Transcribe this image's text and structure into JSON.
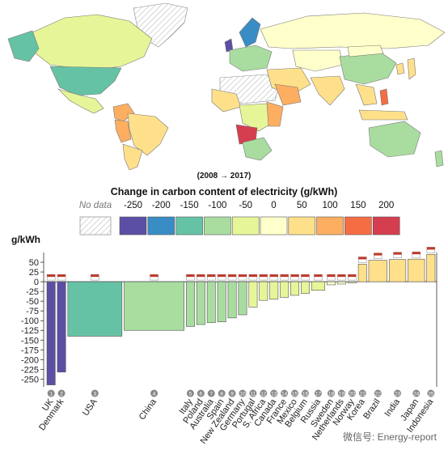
{
  "period_label": "(2008 → 2017)",
  "legend": {
    "title": "Change in carbon content of electricity (g/kWh)",
    "no_data_label": "No data",
    "bins": [
      {
        "label": "-250",
        "color": "#5b4fa5"
      },
      {
        "label": "-200",
        "color": "#3a8dc4"
      },
      {
        "label": "-150",
        "color": "#66c2a5"
      },
      {
        "label": "-100",
        "color": "#a9dda0"
      },
      {
        "label": "-50",
        "color": "#e6f598"
      },
      {
        "label": "0",
        "color": "#ffffcc"
      },
      {
        "label": "50",
        "color": "#fee08b"
      },
      {
        "label": "100",
        "color": "#fdae61"
      },
      {
        "label": "150",
        "color": "#f46d43"
      },
      {
        "label": "200",
        "color": "#d53e4f"
      }
    ]
  },
  "chart_data": {
    "type": "bar",
    "ylabel": "g/kWh",
    "ylim": [
      -270,
      75
    ],
    "yticks": [
      50,
      25,
      0,
      -25,
      -50,
      -75,
      -100,
      -125,
      -150,
      -175,
      -200,
      -225,
      -250
    ],
    "categories": [
      "UK",
      "Denmark",
      "USA",
      "China",
      "Italy",
      "Poland",
      "Australia",
      "Spain",
      "New Zealand",
      "Germany",
      "Portugal",
      "S. Africa",
      "Canada",
      "France",
      "Mexico",
      "Belgium",
      "Russia",
      "Sweden",
      "Netherlands",
      "Norway",
      "Korea",
      "Brazil",
      "India",
      "Japan",
      "Indonesia"
    ],
    "ranks": [
      "1",
      "2",
      "3",
      "4",
      "5",
      "6",
      "7",
      "8",
      "9",
      "10",
      "11",
      "12",
      "13",
      "14",
      "15",
      "16",
      "17",
      "18",
      "19",
      "20",
      "21",
      "22",
      "23",
      "24",
      "25"
    ],
    "values": [
      -265,
      -232,
      -140,
      -125,
      -115,
      -110,
      -105,
      -103,
      -93,
      -85,
      -65,
      -48,
      -45,
      -40,
      -35,
      -30,
      -22,
      -8,
      -6,
      -3,
      45,
      55,
      57,
      58,
      70
    ],
    "colors": [
      "#5b4fa5",
      "#5b4fa5",
      "#66c2a5",
      "#a9dda0",
      "#a9dda0",
      "#a9dda0",
      "#a9dda0",
      "#a9dda0",
      "#a9dda0",
      "#a9dda0",
      "#e6f598",
      "#e6f598",
      "#e6f598",
      "#e6f598",
      "#e6f598",
      "#e6f598",
      "#e6f598",
      "#ffffcc",
      "#ffffcc",
      "#ffffcc",
      "#fee08b",
      "#fee08b",
      "#fee08b",
      "#fee08b",
      "#fee08b"
    ],
    "weights": [
      1,
      1,
      6.5,
      7.2,
      1,
      1,
      1,
      1,
      1,
      1,
      1,
      1,
      1,
      1,
      1,
      1,
      1.6,
      1,
      1,
      1,
      1,
      2.2,
      2,
      2,
      1
    ],
    "flags": [
      "uk",
      "dk",
      "us",
      "cn",
      "it",
      "pl",
      "au",
      "es",
      "nz",
      "de",
      "pt",
      "za",
      "ca",
      "fr",
      "mx",
      "be",
      "ru",
      "se",
      "nl",
      "no",
      "kr",
      "br",
      "in",
      "jp",
      "id"
    ]
  },
  "watermark": "微信号: Energy-report"
}
